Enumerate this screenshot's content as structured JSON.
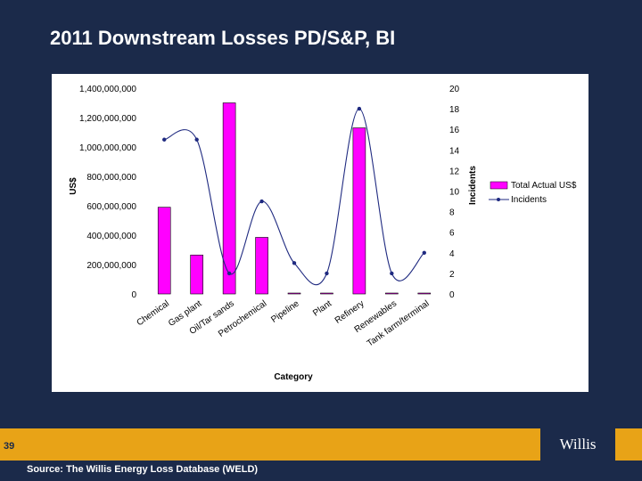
{
  "slide": {
    "title": "2011 Downstream Losses PD/S&P, BI",
    "page_number": "39",
    "source": "Source: The Willis Energy Loss Database (WELD)",
    "logo_text": "Willis",
    "colors": {
      "background": "#1b2a4a",
      "footer_band": "#e8a317",
      "bar": "#ff00ff",
      "line": "#1f2a80"
    }
  },
  "chart_data": {
    "type": "bar",
    "title": "",
    "xlabel": "Category",
    "ylabel": "US$",
    "y2label": "Incidents",
    "ylim": [
      0,
      1400000000
    ],
    "y2lim": [
      0,
      20
    ],
    "yticks": [
      "0",
      "200,000,000",
      "400,000,000",
      "600,000,000",
      "800,000,000",
      "1,000,000,000",
      "1,200,000,000",
      "1,400,000,000"
    ],
    "y2ticks": [
      "0",
      "2",
      "4",
      "6",
      "8",
      "10",
      "12",
      "14",
      "16",
      "18",
      "20"
    ],
    "categories": [
      "Chemical",
      "Gas plant",
      "Oil/Tar sands",
      "Petrochemical",
      "Pipeline",
      "Plant",
      "Refinery",
      "Renewables",
      "Tank farm/terminal"
    ],
    "series": [
      {
        "name": "Total Actual US$",
        "type": "bar",
        "axis": "left",
        "values": [
          590000000,
          265000000,
          1300000000,
          385000000,
          5000000,
          5000000,
          1130000000,
          3000000,
          5000000
        ]
      },
      {
        "name": "Incidents",
        "type": "line",
        "axis": "right",
        "values": [
          15,
          15,
          2,
          9,
          3,
          2,
          18,
          2,
          4
        ]
      }
    ],
    "legend": "right",
    "grid": false
  }
}
